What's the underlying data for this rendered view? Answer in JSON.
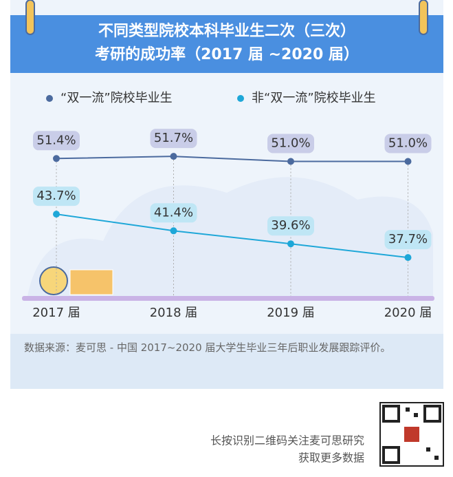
{
  "chart_data": {
    "type": "line",
    "title": [
      "不同类型院校本科毕业生二次（三次）",
      "考研的成功率（2017 届 ~2020 届）"
    ],
    "categories": [
      "2017 届",
      "2018 届",
      "2019 届",
      "2020 届"
    ],
    "series": [
      {
        "name": "“双一流”院校毕业生",
        "color": "#4b6a9e",
        "values": [
          51.4,
          51.7,
          51.0,
          51.0
        ],
        "value_labels": [
          "51.4%",
          "51.7%",
          "51.0%",
          "51.0%"
        ]
      },
      {
        "name": "非“双一流”院校毕业生",
        "color": "#1ea7d8",
        "values": [
          43.7,
          41.4,
          39.6,
          37.7
        ],
        "value_labels": [
          "43.7%",
          "41.4%",
          "39.6%",
          "37.7%"
        ]
      }
    ],
    "source": "数据来源：麦可思 - 中国 2017~2020 届大学生毕业三年后职业发展跟踪评价。"
  },
  "footer": [
    "长按识别二维码关注麦可思研究",
    "获取更多数据"
  ]
}
